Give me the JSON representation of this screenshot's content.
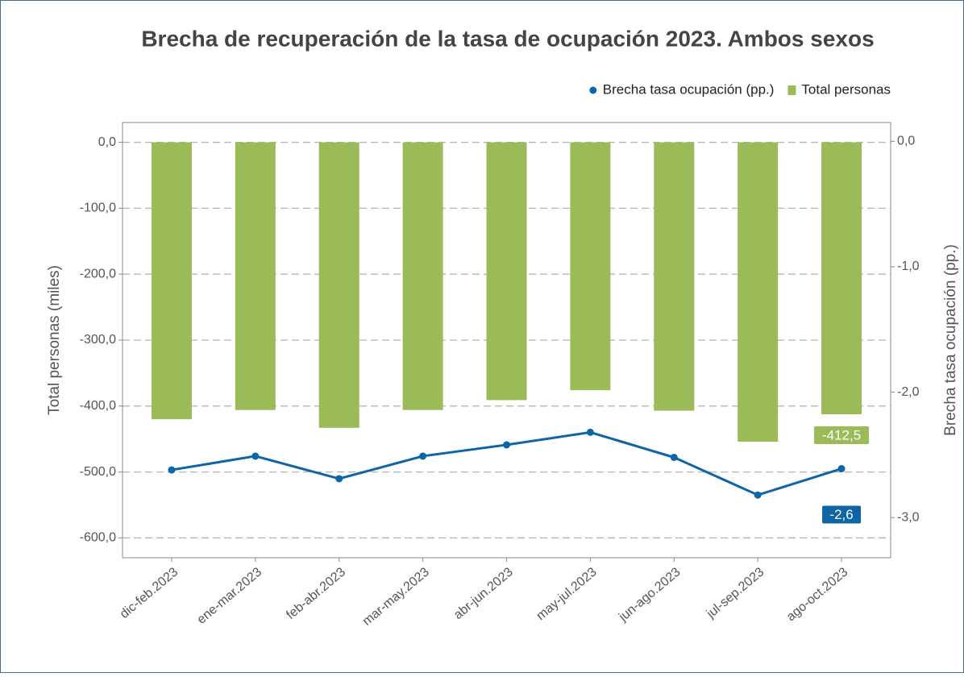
{
  "chart_data": {
    "type": "bar_line",
    "title": "Brecha de recuperación de la tasa de ocupación 2023. Ambos sexos",
    "ylabel": "Total personas (miles)",
    "y2label": "Brecha tasa ocupación (pp.)",
    "categories": [
      "dic-feb.2023",
      "ene-mar.2023",
      "feb-abr.2023",
      "mar-may.2023",
      "abr-jun.2023",
      "may-jul.2023",
      "jun-ago.2023",
      "jul-sep.2023",
      "ago-oct.2023"
    ],
    "series": [
      {
        "name": "Brecha tasa ocupación (pp.)",
        "type": "line",
        "axis": "y2",
        "color": "#0e64a4",
        "values": [
          -2.62,
          -2.51,
          -2.69,
          -2.51,
          -2.42,
          -2.32,
          -2.52,
          -2.82,
          -2.61
        ],
        "value_labels": [
          null,
          null,
          null,
          null,
          null,
          null,
          null,
          null,
          "-2,6"
        ]
      },
      {
        "name": "Total personas",
        "type": "bar",
        "color": "#9bbb59",
        "values": [
          -420,
          -406,
          -433,
          -406,
          -391,
          -376,
          -407,
          -454,
          -412.5
        ],
        "value_labels": [
          null,
          null,
          null,
          null,
          null,
          null,
          null,
          null,
          "-412,5"
        ]
      }
    ],
    "legend": "top-right",
    "grid": true,
    "ylim": [
      -630,
      30
    ],
    "yticks": [
      {
        "value": 0,
        "label": "0,0"
      },
      {
        "value": -100,
        "label": "-100,0"
      },
      {
        "value": -200,
        "label": "-200,0"
      },
      {
        "value": -300,
        "label": "-300,0"
      },
      {
        "value": -400,
        "label": "-400,0"
      },
      {
        "value": -500,
        "label": "-500,0"
      },
      {
        "value": -600,
        "label": "-600,0"
      }
    ],
    "y2lim": [
      -3.32,
      0.15
    ],
    "y2ticks": [
      {
        "value": 0,
        "label": "0,0"
      },
      {
        "value": -1,
        "label": "-1,0"
      },
      {
        "value": -2,
        "label": "-2,0"
      },
      {
        "value": -3,
        "label": "-3,0"
      }
    ]
  }
}
